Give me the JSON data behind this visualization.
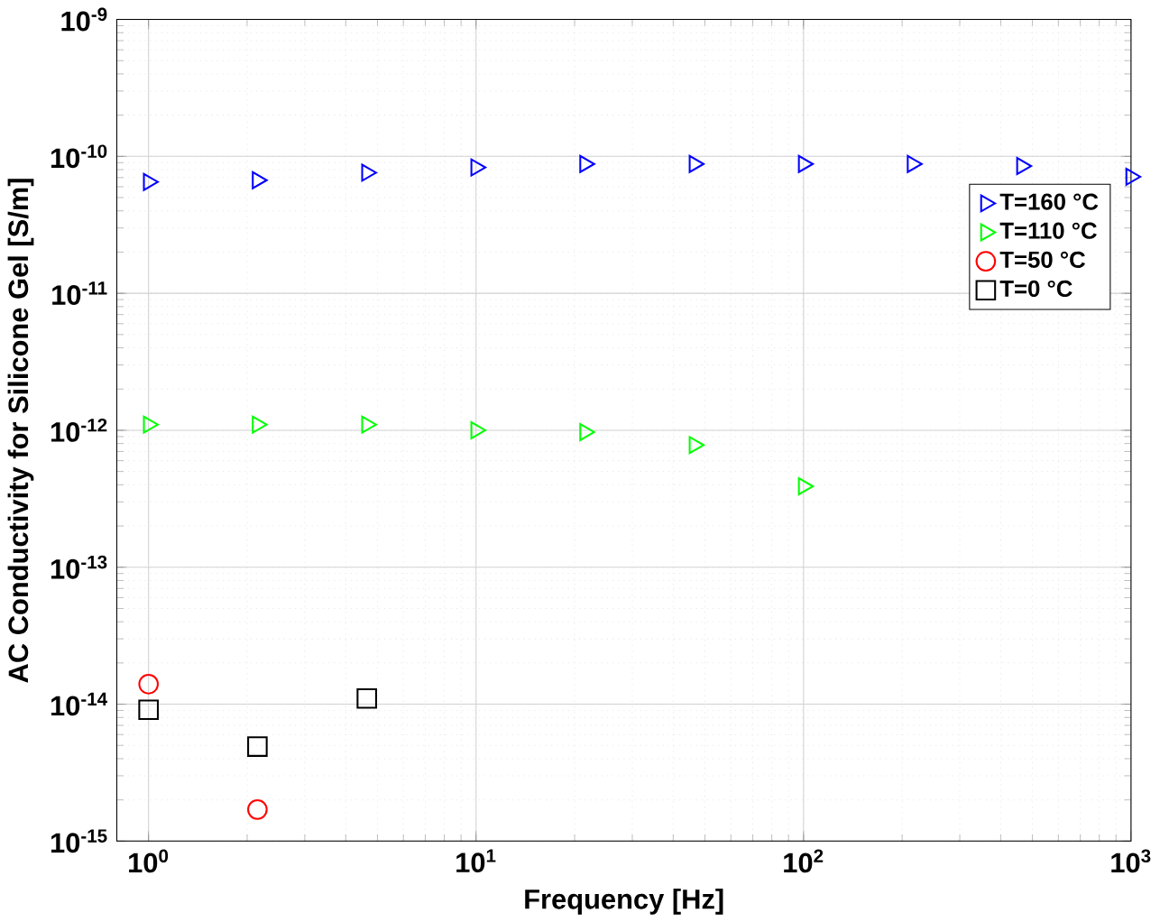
{
  "chart_data": {
    "type": "scatter",
    "xlabel": "Frequency [Hz]",
    "ylabel": "AC Conductivity for Silicone Gel [S/m]",
    "log": "xy",
    "grid": true,
    "legend": "right",
    "xlim": [
      0.8,
      1000
    ],
    "ylim": [
      1e-15,
      1e-09
    ],
    "xticks": [
      {
        "value": 1,
        "label": "10$^{0}$"
      },
      {
        "value": 10,
        "label": "10$^{1}$"
      },
      {
        "value": 100,
        "label": "10$^{2}$"
      },
      {
        "value": 1000,
        "label": "10$^{3}$"
      }
    ],
    "yticks": [
      {
        "value": 1e-15,
        "label": "10$^{-15}$"
      },
      {
        "value": 1e-14,
        "label": "10$^{-14}$"
      },
      {
        "value": 1e-13,
        "label": "10$^{-13}$"
      },
      {
        "value": 1e-12,
        "label": "10$^{-12}$"
      },
      {
        "value": 1e-11,
        "label": "10$^{-11}$"
      },
      {
        "value": 1e-10,
        "label": "10$^{-10}$"
      },
      {
        "value": 1e-09,
        "label": "10$^{-9}$"
      }
    ],
    "series": [
      {
        "name": "T=160 °C",
        "color": "#0000ff",
        "marker": "triangle",
        "x": [
          1,
          2.15,
          4.64,
          10,
          21.5,
          46.4,
          100,
          215,
          464,
          1000
        ],
        "values": [
          6.5e-11,
          6.7e-11,
          7.6e-11,
          8.3e-11,
          8.8e-11,
          8.8e-11,
          8.8e-11,
          8.8e-11,
          8.5e-11,
          7.1e-11
        ]
      },
      {
        "name": "T=110 °C",
        "color": "#00ff00",
        "marker": "triangle",
        "x": [
          1,
          2.15,
          4.64,
          10,
          21.5,
          46.4,
          100
        ],
        "values": [
          1.1e-12,
          1.1e-12,
          1.1e-12,
          1e-12,
          9.7e-13,
          7.8e-13,
          3.9e-13
        ]
      },
      {
        "name": "T=50 °C",
        "color": "#ff0000",
        "marker": "circle",
        "x": [
          1,
          2.15
        ],
        "values": [
          1.4e-14,
          1.7e-15
        ]
      },
      {
        "name": "T=0 °C",
        "color": "#000000",
        "marker": "square",
        "x": [
          1,
          2.15,
          4.64
        ],
        "values": [
          9.1e-15,
          4.9e-15,
          1.1e-14
        ]
      }
    ]
  }
}
